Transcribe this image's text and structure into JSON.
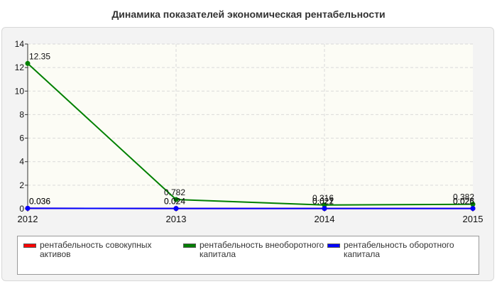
{
  "chart_data": {
    "type": "line",
    "title": "Динамика показателей экономическая рентабельности",
    "categories": [
      "2012",
      "2013",
      "2014",
      "2015"
    ],
    "ylim": [
      0,
      14
    ],
    "yticks": [
      "0",
      "2",
      "4",
      "6",
      "8",
      "10",
      "12",
      "14"
    ],
    "grid": true,
    "legend_position": "bottom",
    "series": [
      {
        "name": "рентабельность совокупных активов",
        "color": "#ff0000",
        "values": [
          0.036,
          0.024,
          0.021,
          0.025
        ],
        "labels": [
          "0.036",
          "0.024",
          "0.021",
          "0.025"
        ]
      },
      {
        "name": "рентабельность внеоборотного капитала",
        "color": "#008000",
        "values": [
          12.35,
          0.782,
          0.316,
          0.382
        ],
        "labels": [
          "12.35",
          "0.782",
          "0.316",
          "0.382"
        ]
      },
      {
        "name": "рентабельность оборотного капитала",
        "color": "#0000ff",
        "values": [
          0.036,
          0.024,
          0.022,
          0.026
        ],
        "labels": [
          "0.036",
          "0.024",
          "0.022",
          "0.026"
        ]
      }
    ]
  }
}
